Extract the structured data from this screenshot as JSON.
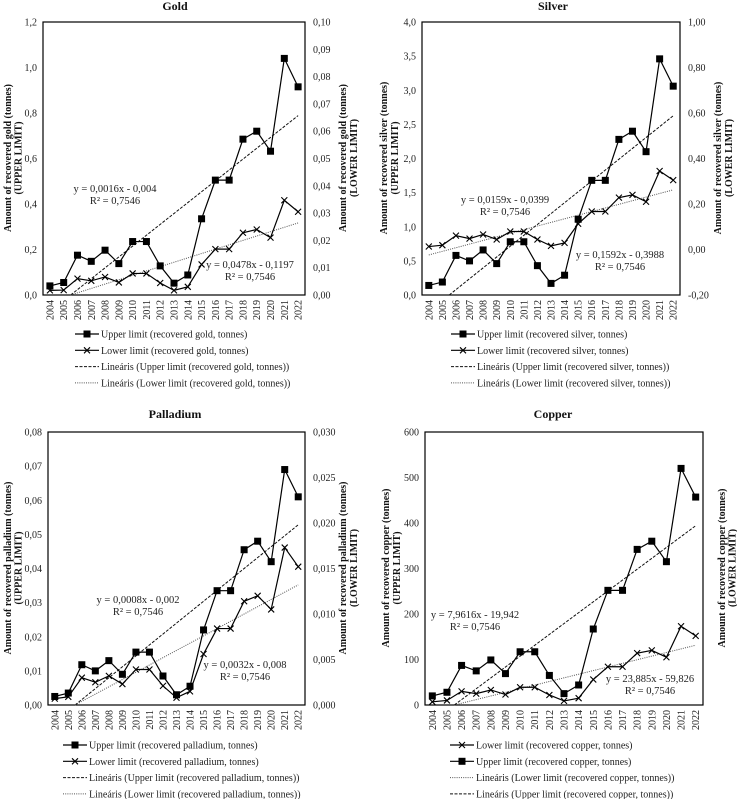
{
  "chart_data": [
    {
      "type": "line",
      "title": "Gold",
      "x": [
        "2004",
        "2005",
        "2006",
        "2007",
        "2008",
        "2009",
        "2010",
        "2011",
        "2012",
        "2013",
        "2014",
        "2015",
        "2016",
        "2017",
        "2018",
        "2019",
        "2020",
        "2021",
        "2022"
      ],
      "ylabel": [
        "Amount of recovered gold (tonnes)",
        "(UPPER LIMIT)"
      ],
      "y2label": [
        "Amount of recovered gold (tonnes)",
        "(LOWER LIMIT)"
      ],
      "ylim": [
        0,
        1.2
      ],
      "y2lim": [
        0,
        0.1
      ],
      "yticks": [
        "0,0",
        "0,2",
        "0,4",
        "0,6",
        "0,8",
        "1,0",
        "1,2"
      ],
      "y2ticks": [
        "0,00",
        "0,01",
        "0,02",
        "0,03",
        "0,04",
        "0,05",
        "0,06",
        "0,07",
        "0,08",
        "0,09",
        "0,10"
      ],
      "series": [
        {
          "name": "Upper limit (recovered gold, tonnes)",
          "axis": "left",
          "marker": "square",
          "values": [
            0.04,
            0.055,
            0.175,
            0.148,
            0.197,
            0.138,
            0.235,
            0.235,
            0.128,
            0.052,
            0.088,
            0.335,
            0.505,
            0.505,
            0.685,
            0.72,
            0.632,
            1.04,
            0.915
          ]
        },
        {
          "name": "Lower limit (recovered gold, tonnes)",
          "axis": "right",
          "marker": "x",
          "values": [
            0.0017,
            0.0018,
            0.006,
            0.0052,
            0.0066,
            0.0046,
            0.0079,
            0.0079,
            0.0044,
            0.0017,
            0.003,
            0.0112,
            0.0168,
            0.0168,
            0.0228,
            0.024,
            0.021,
            0.0347,
            0.0305
          ]
        }
      ],
      "trendlines": [
        {
          "name": "Lineáris (Upper limit (recovered gold, tonnes))",
          "axis": "left",
          "style": "dashed",
          "slope": 0.0478,
          "intercept": -0.1197
        },
        {
          "name": "Lineáris (Lower limit (recovered gold, tonnes))",
          "axis": "right",
          "style": "dotted",
          "slope": 0.0016,
          "intercept": -0.004
        }
      ],
      "annotations": [
        {
          "equation": "y = 0,0016x - 0,004",
          "r2": "R² = 0,7546"
        },
        {
          "equation": "y = 0,0478x - 0,1197",
          "r2": "R² = 0,7546"
        }
      ],
      "legend_order": [
        "Upper limit (recovered gold, tonnes)",
        "Lower limit (recovered gold, tonnes)",
        "Lineáris (Upper limit (recovered gold, tonnes))",
        "Lineáris (Lower limit (recovered gold, tonnes))"
      ]
    },
    {
      "type": "line",
      "title": "Silver",
      "x": [
        "2004",
        "2005",
        "2006",
        "2007",
        "2008",
        "2009",
        "2010",
        "2011",
        "2012",
        "2013",
        "2014",
        "2015",
        "2016",
        "2017",
        "2018",
        "2019",
        "2020",
        "2021",
        "2022"
      ],
      "ylabel": [
        "Amount of recovered silver (tonnes)",
        "(UPPER LIMIT)"
      ],
      "y2label": [
        "Amount of recovered silver (tonnes)",
        "(LOWER LIMIT)"
      ],
      "ylim": [
        0,
        4.0
      ],
      "y2lim": [
        -0.2,
        1.0
      ],
      "yticks": [
        "0,0",
        "0,5",
        "1,0",
        "1,5",
        "2,0",
        "2,5",
        "3,0",
        "3,5",
        "4,0"
      ],
      "y2ticks": [
        "-0,20",
        "0,00",
        "0,20",
        "0,40",
        "0,60",
        "0,80",
        "1,00"
      ],
      "series": [
        {
          "name": "Upper limit (recovered silver, tonnes)",
          "axis": "left",
          "marker": "square",
          "values": [
            0.14,
            0.19,
            0.58,
            0.5,
            0.66,
            0.46,
            0.78,
            0.78,
            0.43,
            0.17,
            0.29,
            1.11,
            1.68,
            1.68,
            2.28,
            2.4,
            2.1,
            3.46,
            3.06
          ]
        },
        {
          "name": "Lower limit (recovered silver, tonnes)",
          "axis": "right",
          "marker": "x",
          "values": [
            0.013,
            0.019,
            0.061,
            0.048,
            0.066,
            0.044,
            0.079,
            0.079,
            0.044,
            0.016,
            0.029,
            0.113,
            0.167,
            0.167,
            0.228,
            0.24,
            0.21,
            0.345,
            0.305
          ]
        }
      ],
      "trendlines": [
        {
          "name": "Lineáris (Upper limit (recovered silver, tonnes))",
          "axis": "left",
          "style": "dashed",
          "slope": 0.1592,
          "intercept": -0.3988
        },
        {
          "name": "Lineáris (Lower limit (recovered silver, tonnes))",
          "axis": "right",
          "style": "dotted",
          "slope": 0.0159,
          "intercept": -0.0399
        }
      ],
      "annotations": [
        {
          "equation": "y = 0,0159x - 0,0399",
          "r2": "R² = 0,7546"
        },
        {
          "equation": "y = 0,1592x - 0,3988",
          "r2": "R² = 0,7546"
        }
      ],
      "legend_order": [
        "Upper limit (recovered silver, tonnes)",
        "Lower limit (recovered silver, tonnes)",
        "Lineáris (Upper limit (recovered silver, tonnes))",
        "Lineáris (Lower limit (recovered silver, tonnes))"
      ]
    },
    {
      "type": "line",
      "title": "Palladium",
      "x": [
        "2004",
        "2005",
        "2006",
        "2007",
        "2008",
        "2009",
        "2010",
        "2011",
        "2012",
        "2013",
        "2014",
        "2015",
        "2016",
        "2017",
        "2018",
        "2019",
        "2020",
        "2021",
        "2022"
      ],
      "ylabel": [
        "Amount of recovered palladium (tonnes)",
        "(UPPER LIMIT)"
      ],
      "y2label": [
        "Amount of recovered palladium (tonnes)",
        "(LOWER LIMIT)"
      ],
      "ylim": [
        0,
        0.08
      ],
      "y2lim": [
        0,
        0.03
      ],
      "yticks": [
        "0,00",
        "0,01",
        "0,02",
        "0,03",
        "0,04",
        "0,05",
        "0,06",
        "0,07",
        "0,08"
      ],
      "y2ticks": [
        "0,000",
        "0,005",
        "0,010",
        "0,015",
        "0,020",
        "0,025",
        "0,030"
      ],
      "series": [
        {
          "name": "Upper limit (recovered palladium, tonnes)",
          "axis": "left",
          "marker": "square",
          "values": [
            0.0025,
            0.0035,
            0.0118,
            0.01,
            0.013,
            0.009,
            0.0155,
            0.0155,
            0.0085,
            0.003,
            0.0055,
            0.022,
            0.0335,
            0.0335,
            0.0455,
            0.048,
            0.042,
            0.069,
            0.061
          ]
        },
        {
          "name": "Lower limit (recovered palladium, tonnes)",
          "axis": "right",
          "marker": "x",
          "values": [
            0.0007,
            0.0009,
            0.003,
            0.0025,
            0.0032,
            0.0023,
            0.0039,
            0.0039,
            0.0021,
            0.0008,
            0.0015,
            0.0056,
            0.0084,
            0.0084,
            0.0114,
            0.012,
            0.0105,
            0.0173,
            0.0152
          ]
        }
      ],
      "trendlines": [
        {
          "name": "Lineáris (Upper limit (recovered palladium, tonnes))",
          "axis": "left",
          "style": "dashed",
          "slope": 0.0032,
          "intercept": -0.008
        },
        {
          "name": "Lineáris (Lower limit (recovered palladium, tonnes))",
          "axis": "right",
          "style": "dotted",
          "slope": 0.0008,
          "intercept": -0.002
        }
      ],
      "annotations": [
        {
          "equation": "y = 0,0008x - 0,002",
          "r2": "R² = 0,7546"
        },
        {
          "equation": "y = 0,0032x - 0,008",
          "r2": "R² = 0,7546"
        }
      ],
      "legend_order": [
        "Upper limit (recovered palladium, tonnes)",
        "Lower limit (recovered palladium, tonnes)",
        "Lineáris (Upper limit (recovered palladium, tonnes))",
        "Lineáris (Lower limit (recovered palladium, tonnes))"
      ]
    },
    {
      "type": "line",
      "title": "Copper",
      "x": [
        "2004",
        "2005",
        "2006",
        "2007",
        "2008",
        "2009",
        "2010",
        "2011",
        "2012",
        "2013",
        "2014",
        "2015",
        "2016",
        "2017",
        "2018",
        "2019",
        "2020",
        "2021",
        "2022"
      ],
      "ylabel": [
        "Amount of recovered copper (tonnes)",
        "(UPPER LIMIT)"
      ],
      "y2label": [
        "Amount of recovered copper (tonnes)",
        "(LOWER LIMIT)"
      ],
      "ylim": [
        0,
        600
      ],
      "y2lim": [
        0,
        600
      ],
      "yticks": [
        "0",
        "100",
        "200",
        "300",
        "400",
        "500",
        "600"
      ],
      "y2ticks": [],
      "series": [
        {
          "name": "Lower limit (recovered copper, tonnes)",
          "axis": "left",
          "marker": "x",
          "values": [
            7,
            10,
            30,
            25,
            33,
            23,
            39,
            39,
            22,
            9,
            15,
            56,
            84,
            84,
            114,
            120,
            105,
            173,
            152
          ]
        },
        {
          "name": "Upper limit (recovered copper, tonnes)",
          "axis": "left",
          "marker": "square",
          "values": [
            20,
            28,
            87,
            75,
            99,
            69,
            117,
            117,
            65,
            25,
            44,
            167,
            252,
            252,
            342,
            360,
            315,
            520,
            457
          ]
        }
      ],
      "trendlines": [
        {
          "name": "Lineáris (Lower limit (recovered copper, tonnes))",
          "axis": "left",
          "style": "dotted",
          "slope": 7.9616,
          "intercept": -19.942
        },
        {
          "name": "Lineáris (Upper limit (recovered copper, tonnes))",
          "axis": "left",
          "style": "dashed",
          "slope": 23.885,
          "intercept": -59.826
        }
      ],
      "annotations": [
        {
          "equation": "y = 7,9616x - 19,942",
          "r2": "R² = 0,7546"
        },
        {
          "equation": "y = 23,885x - 59,826",
          "r2": "R² = 0,7546"
        }
      ],
      "legend_order": [
        "Lower limit (recovered copper, tonnes)",
        "Upper limit (recovered copper, tonnes)",
        "Lineáris (Lower limit (recovered copper, tonnes))",
        "Lineáris (Upper limit (recovered copper, tonnes))"
      ]
    }
  ]
}
